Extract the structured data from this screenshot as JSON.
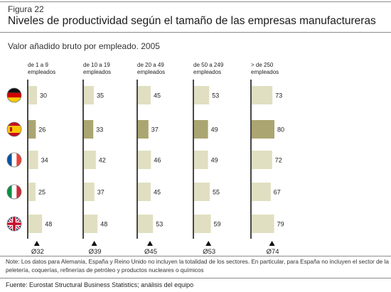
{
  "figure": {
    "label": "Figura 22",
    "title": "Niveles de productividad según el tamaño de las empresas manufactureras",
    "subtitle": "Valor añadido bruto por empleado. 2005"
  },
  "chart_data": {
    "type": "bar",
    "orientation": "horizontal-small-multiples",
    "title": "Niveles de productividad según el tamaño de las empresas manufactureras",
    "subtitle": "Valor añadido bruto por empleado. 2005",
    "groups": [
      {
        "label_line1": "de 1 a 9",
        "label_line2": "empleados",
        "average_label": "Ø32",
        "average": 32
      },
      {
        "label_line1": "de 10 a 19",
        "label_line2": "empleados",
        "average_label": "Ø39",
        "average": 39
      },
      {
        "label_line1": "de 20 a 49",
        "label_line2": "empleados",
        "average_label": "Ø45",
        "average": 45
      },
      {
        "label_line1": "de 50 a 249",
        "label_line2": "empleados",
        "average_label": "Ø53",
        "average": 53
      },
      {
        "label_line1": "> de 250",
        "label_line2": "empleados",
        "average_label": "Ø74",
        "average": 74
      }
    ],
    "countries": [
      {
        "flag": "germany-flag-icon",
        "highlight": false,
        "values": [
          30,
          35,
          45,
          53,
          73
        ]
      },
      {
        "flag": "spain-flag-icon",
        "highlight": true,
        "values": [
          26,
          33,
          37,
          49,
          80
        ]
      },
      {
        "flag": "france-flag-icon",
        "highlight": false,
        "values": [
          34,
          42,
          46,
          49,
          72
        ]
      },
      {
        "flag": "italy-flag-icon",
        "highlight": false,
        "values": [
          25,
          37,
          45,
          55,
          67
        ]
      },
      {
        "flag": "uk-flag-icon",
        "highlight": false,
        "values": [
          48,
          48,
          53,
          59,
          79
        ]
      }
    ],
    "colors": {
      "bar": "#e1dfc1",
      "bar_highlight": "#aba571",
      "axis": "#1a1a1a"
    },
    "legend": "none",
    "grid": false
  },
  "note": "Note: Los datos para Alemania, España y Reino Unido no incluyen la totalidad de los sectores. En particular, para España no incluyen el sector de la peletería, coquerías, refinerías de petróleo y productos nucleares o químicos",
  "source": "Fuente: Eurostat Structural Business Statistics; análisis del equipo"
}
